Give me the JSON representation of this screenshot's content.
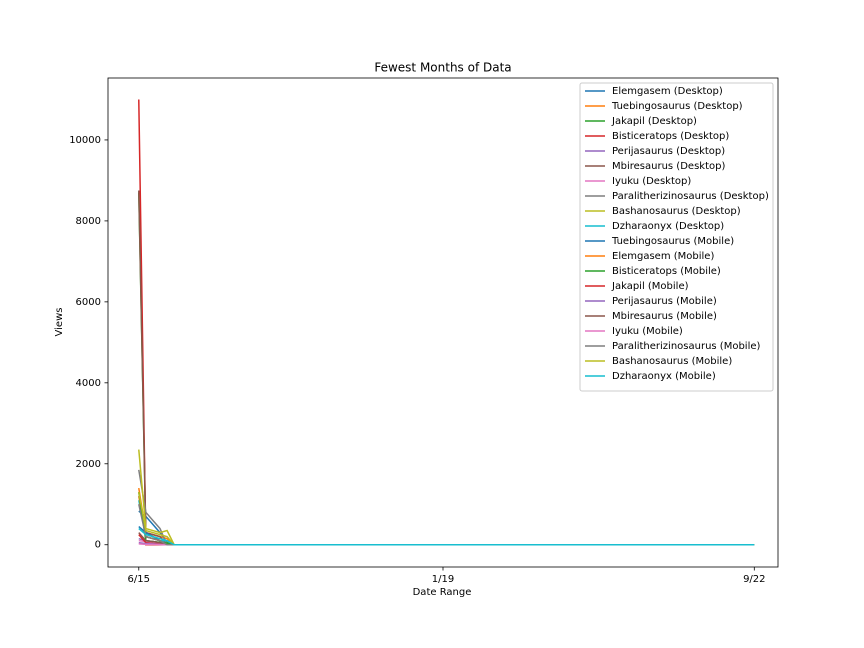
{
  "chart_data": {
    "type": "line",
    "title": "Fewest Months of Data",
    "xlabel": "Date Range",
    "ylabel": "Views",
    "x": [
      0,
      1,
      2,
      3,
      4,
      5,
      6,
      87
    ],
    "xlim": [
      -4.35,
      90.35
    ],
    "xticks": [
      {
        "value": 0,
        "label": "6/15"
      },
      {
        "value": 43,
        "label": "1/19"
      },
      {
        "value": 87,
        "label": "9/22"
      }
    ],
    "ylim": [
      -550,
      11530
    ],
    "yticks": [
      0,
      2000,
      4000,
      6000,
      8000,
      10000
    ],
    "legend": "upper right",
    "series": [
      {
        "name": "Elemgasem (Desktop)",
        "color": "#1f77b4",
        "values": [
          830,
          700,
          500,
          300,
          50,
          0,
          0,
          0
        ]
      },
      {
        "name": "Tuebingosaurus (Desktop)",
        "color": "#ff7f0e",
        "values": [
          1400,
          300,
          250,
          200,
          150,
          0,
          0,
          0
        ]
      },
      {
        "name": "Jakapil (Desktop)",
        "color": "#2ca02c",
        "values": [
          8700,
          200,
          150,
          100,
          50,
          0,
          0,
          0
        ]
      },
      {
        "name": "Bisticeratops (Desktop)",
        "color": "#d62728",
        "values": [
          11000,
          0,
          0,
          0,
          0,
          0,
          0,
          0
        ]
      },
      {
        "name": "Perijasaurus (Desktop)",
        "color": "#9467bd",
        "values": [
          150,
          100,
          80,
          50,
          20,
          0,
          0,
          0
        ]
      },
      {
        "name": "Mbiresaurus (Desktop)",
        "color": "#8c564b",
        "values": [
          8750,
          300,
          250,
          200,
          0,
          0,
          0,
          0
        ]
      },
      {
        "name": "Iyuku (Desktop)",
        "color": "#e377c2",
        "values": [
          100,
          80,
          60,
          40,
          0,
          0,
          0,
          0
        ]
      },
      {
        "name": "Paralitherizinosaurus (Desktop)",
        "color": "#7f7f7f",
        "values": [
          1850,
          800,
          600,
          400,
          0,
          0,
          0,
          0
        ]
      },
      {
        "name": "Bashanosaurus (Desktop)",
        "color": "#bcbd22",
        "values": [
          2350,
          400,
          350,
          300,
          350,
          0,
          0,
          0
        ]
      },
      {
        "name": "Dzharaonyx (Desktop)",
        "color": "#17becf",
        "values": [
          1100,
          200,
          150,
          100,
          100,
          0,
          0,
          0
        ]
      },
      {
        "name": "Tuebingosaurus (Mobile)",
        "color": "#1f77b4",
        "values": [
          450,
          300,
          200,
          100,
          0,
          0,
          0,
          0
        ]
      },
      {
        "name": "Elemgasem (Mobile)",
        "color": "#ff7f0e",
        "values": [
          1200,
          200,
          150,
          100,
          0,
          0,
          0,
          0
        ]
      },
      {
        "name": "Bisticeratops (Mobile)",
        "color": "#2ca02c",
        "values": [
          1300,
          100,
          80,
          60,
          40,
          0,
          0,
          0
        ]
      },
      {
        "name": "Jakapil (Mobile)",
        "color": "#d62728",
        "values": [
          250,
          50,
          30,
          20,
          0,
          0,
          0,
          0
        ]
      },
      {
        "name": "Perijasaurus (Mobile)",
        "color": "#9467bd",
        "values": [
          50,
          30,
          20,
          10,
          0,
          0,
          0,
          0
        ]
      },
      {
        "name": "Mbiresaurus (Mobile)",
        "color": "#8c564b",
        "values": [
          300,
          100,
          80,
          50,
          0,
          0,
          0,
          0
        ]
      },
      {
        "name": "Iyuku (Mobile)",
        "color": "#e377c2",
        "values": [
          20,
          10,
          10,
          5,
          0,
          0,
          0,
          0
        ]
      },
      {
        "name": "Paralitherizinosaurus (Mobile)",
        "color": "#7f7f7f",
        "values": [
          1000,
          200,
          150,
          100,
          0,
          0,
          0,
          0
        ]
      },
      {
        "name": "Bashanosaurus (Mobile)",
        "color": "#bcbd22",
        "values": [
          1300,
          350,
          300,
          250,
          200,
          0,
          0,
          0
        ]
      },
      {
        "name": "Dzharaonyx (Mobile)",
        "color": "#17becf",
        "values": [
          400,
          250,
          200,
          150,
          100,
          0,
          0,
          0
        ]
      }
    ]
  }
}
